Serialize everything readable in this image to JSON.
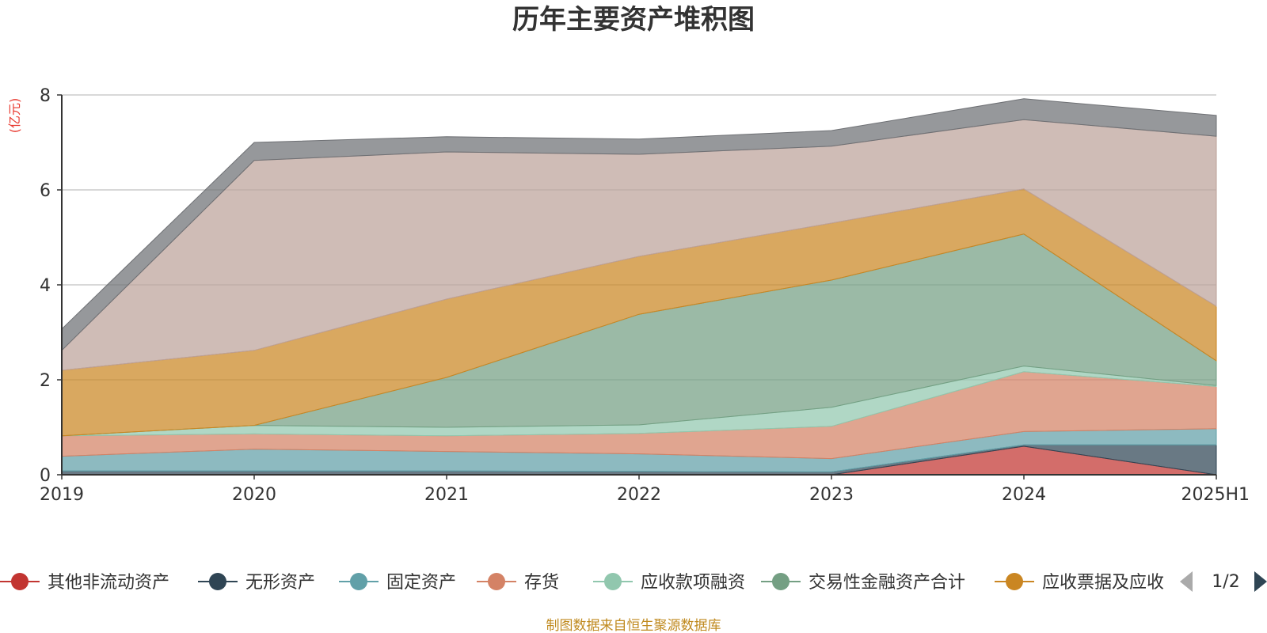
{
  "chart_data": {
    "type": "area",
    "stacked": true,
    "title": "历年主要资产堆积图",
    "unit_label": "(亿元)",
    "x": [
      "2019",
      "2020",
      "2021",
      "2022",
      "2023",
      "2024",
      "2025H1"
    ],
    "ylim": [
      0,
      8
    ],
    "yticks": [
      "0",
      "2",
      "4",
      "6",
      "8"
    ],
    "grid": true,
    "legend_position": "bottom",
    "series": [
      {
        "name": "其他非流动资产",
        "color": "#c23531",
        "values": [
          0,
          0,
          0,
          0,
          0,
          0.6,
          0
        ]
      },
      {
        "name": "无形资产",
        "color": "#2f4554",
        "values": [
          0.08,
          0.08,
          0.08,
          0.07,
          0.06,
          0.03,
          0.63
        ]
      },
      {
        "name": "固定资产",
        "color": "#61a0a8",
        "values": [
          0.31,
          0.46,
          0.41,
          0.37,
          0.28,
          0.28,
          0.34
        ]
      },
      {
        "name": "存货",
        "color": "#d48265",
        "values": [
          0.43,
          0.32,
          0.33,
          0.43,
          0.68,
          1.26,
          0.89
        ]
      },
      {
        "name": "应收款项融资",
        "color": "#91c7ae",
        "values": [
          0,
          0.18,
          0.18,
          0.18,
          0.4,
          0.12,
          0.02
        ]
      },
      {
        "name": "交易性金融资产合计",
        "color": "#749f83",
        "values": [
          0,
          0,
          1.05,
          2.33,
          2.68,
          2.78,
          0.52
        ]
      },
      {
        "name": "应收票据及应收",
        "color": "#ca8622",
        "values": [
          1.38,
          1.58,
          1.65,
          1.22,
          1.2,
          0.95,
          1.15
        ]
      },
      {
        "name": "",
        "color": "#bda29a",
        "values": [
          0.42,
          4.0,
          3.1,
          2.15,
          1.62,
          1.46,
          3.58
        ]
      },
      {
        "name": "",
        "color": "#6e7074",
        "values": [
          0.45,
          0.38,
          0.32,
          0.32,
          0.33,
          0.44,
          0.44
        ]
      }
    ]
  },
  "legend": {
    "items": [
      {
        "name": "其他非流动资产",
        "color": "#c23531"
      },
      {
        "name": "无形资产",
        "color": "#2f4554"
      },
      {
        "name": "固定资产",
        "color": "#61a0a8"
      },
      {
        "name": "存货",
        "color": "#d48265"
      },
      {
        "name": "应收款项融资",
        "color": "#91c7ae"
      },
      {
        "name": "交易性金融资产合计",
        "color": "#749f83"
      },
      {
        "name": "应收票据及应收",
        "color": "#ca8622"
      }
    ],
    "page": "1/2"
  },
  "footer": {
    "source": "制图数据来自恒生聚源数据库"
  }
}
